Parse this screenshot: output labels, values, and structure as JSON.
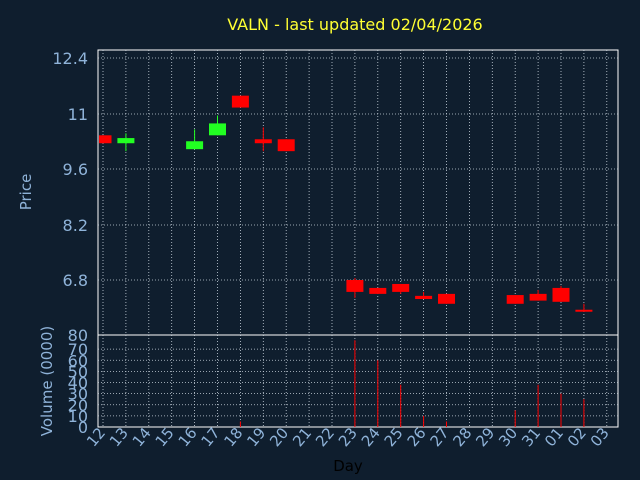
{
  "colors": {
    "background": "#0f1e2e",
    "frame": "#ffffff",
    "grid": "#c8d2dc",
    "title": "#ffff33",
    "axis_text": "#8fb3d9",
    "up": "#22ff22",
    "down": "#ff0000",
    "volume": "#ff0000"
  },
  "chart_data": {
    "type": "candlestick",
    "title": "VALN - last updated 02/04/2026",
    "xlabel": "Day",
    "ylabel": "Price",
    "volume_label": "Volume (0000)",
    "grid": true,
    "legend": "none",
    "x_ticks": [
      "12",
      "13",
      "14",
      "15",
      "16",
      "17",
      "18",
      "19",
      "20",
      "21",
      "22",
      "23",
      "24",
      "25",
      "26",
      "27",
      "28",
      "29",
      "30",
      "31",
      "01",
      "02",
      "03"
    ],
    "price_ticks": [
      "12.4",
      "11",
      "9.6",
      "8.2",
      "6.8"
    ],
    "price_range": [
      5.5,
      12.6
    ],
    "volume_ticks": [
      "80",
      "70",
      "60",
      "50",
      "40",
      "30",
      "20",
      "10",
      "0"
    ],
    "volume_range": [
      0,
      80
    ],
    "candles": [
      {
        "day": "12",
        "open": 10.45,
        "close": 10.25,
        "high": 10.45,
        "low": 10.25,
        "volume": 0
      },
      {
        "day": "13",
        "open": 10.25,
        "close": 10.38,
        "high": 10.5,
        "low": 10.05,
        "volume": 0
      },
      {
        "day": "16",
        "open": 10.1,
        "close": 10.3,
        "high": 10.6,
        "low": 10.1,
        "volume": 0
      },
      {
        "day": "17",
        "open": 10.45,
        "close": 10.75,
        "high": 10.95,
        "low": 10.45,
        "volume": 0
      },
      {
        "day": "18",
        "open": 11.45,
        "close": 11.15,
        "high": 11.45,
        "low": 11.15,
        "volume": 5
      },
      {
        "day": "19",
        "open": 10.35,
        "close": 10.25,
        "high": 10.65,
        "low": 10.05,
        "volume": 0
      },
      {
        "day": "20",
        "open": 10.35,
        "close": 10.05,
        "high": 10.35,
        "low": 10.05,
        "volume": 0
      },
      {
        "day": "23",
        "open": 6.8,
        "close": 6.5,
        "high": 6.85,
        "low": 6.35,
        "volume": 78
      },
      {
        "day": "24",
        "open": 6.6,
        "close": 6.45,
        "high": 6.6,
        "low": 6.45,
        "volume": 60
      },
      {
        "day": "25",
        "open": 6.7,
        "close": 6.5,
        "high": 6.7,
        "low": 6.45,
        "volume": 38
      },
      {
        "day": "26",
        "open": 6.4,
        "close": 6.32,
        "high": 6.5,
        "low": 6.32,
        "volume": 10
      },
      {
        "day": "27",
        "open": 6.45,
        "close": 6.2,
        "high": 6.45,
        "low": 6.2,
        "volume": 5
      },
      {
        "day": "30",
        "open": 6.42,
        "close": 6.2,
        "high": 6.42,
        "low": 6.2,
        "volume": 15
      },
      {
        "day": "31",
        "open": 6.45,
        "close": 6.28,
        "high": 6.55,
        "low": 6.28,
        "volume": 38
      },
      {
        "day": "01",
        "open": 6.6,
        "close": 6.25,
        "high": 6.65,
        "low": 6.25,
        "volume": 30
      },
      {
        "day": "02",
        "open": 6.05,
        "close": 6.02,
        "high": 6.2,
        "low": 6.0,
        "volume": 25
      }
    ]
  }
}
